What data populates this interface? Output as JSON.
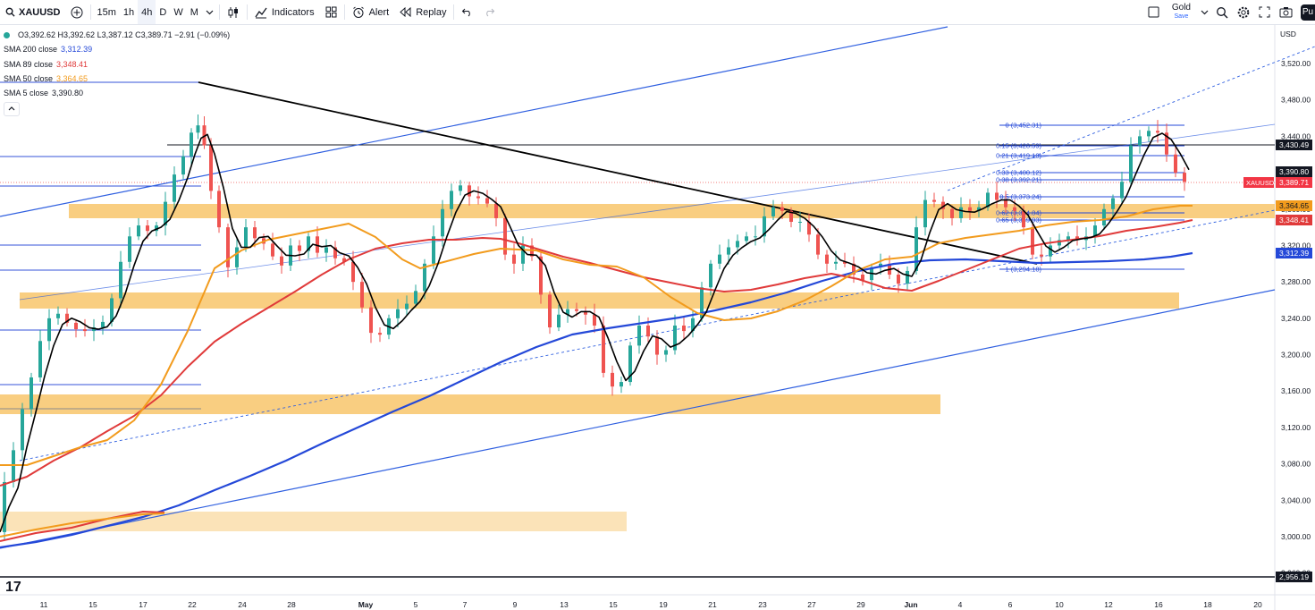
{
  "toolbar": {
    "symbol": "XAUUSD",
    "intervals": [
      "15m",
      "1h",
      "4h",
      "D",
      "W",
      "M"
    ],
    "active_interval": "4h",
    "indicators_label": "Indicators",
    "alert_label": "Alert",
    "replay_label": "Replay",
    "layout_name": "Gold",
    "layout_sub": "Save",
    "publish_label": "Pu"
  },
  "legend": {
    "ohlc": "O3,392.62 H3,392.62 L3,387.12 C3,389.71 −2.91 (−0.09%)",
    "sma200_label": "SMA 200 close",
    "sma200_value": "3,312.39",
    "sma89_label": "SMA 89 close",
    "sma89_value": "3,348.41",
    "sma50_label": "SMA 50 close",
    "sma50_value": "3,364.65",
    "sma5_label": "SMA 5 close",
    "sma5_value": "3,390.80"
  },
  "colors": {
    "sma200": "#2448d8",
    "sma89": "#e03a3a",
    "sma50": "#f29b1d",
    "sma5": "#000000",
    "zone": "#f8c66b",
    "up": "#26a69a",
    "down": "#ef5350"
  },
  "price_axis": {
    "currency": "USD",
    "ticks": [
      "3,520.00",
      "3,480.00",
      "3,440.00",
      "3,400.00",
      "3,360.00",
      "3,320.00",
      "3,280.00",
      "3,240.00",
      "3,200.00",
      "3,160.00",
      "3,120.00",
      "3,080.00",
      "3,040.00",
      "3,000.00",
      "2,960.00"
    ]
  },
  "price_tags": {
    "level_top": "3,430.49",
    "sma5": "3,390.80",
    "symbol": "XAUUSD",
    "last": "3,389.71",
    "sma50": "3,364.65",
    "sma89": "3,348.41",
    "sma200": "3,312.39",
    "level_bottom": "2,956.19"
  },
  "time_axis": {
    "ticks": [
      "11",
      "15",
      "17",
      "22",
      "24",
      "28",
      "May",
      "5",
      "7",
      "9",
      "13",
      "15",
      "19",
      "21",
      "23",
      "27",
      "29",
      "Jun",
      "4",
      "6",
      "10",
      "12",
      "16",
      "18",
      "20"
    ]
  },
  "fib_labels": [
    "0 (3,452.31)",
    "0.15 (3,428.59)",
    "0.21 (3,419.10)",
    "0.33 (3,400.12)",
    "0.38 (3,392.21)",
    "0.5 (3,373.24)",
    "0.62 (3,354.84)",
    "0.65 (3,349.93)",
    "1 (3,294.18)"
  ],
  "watermark": "17"
}
